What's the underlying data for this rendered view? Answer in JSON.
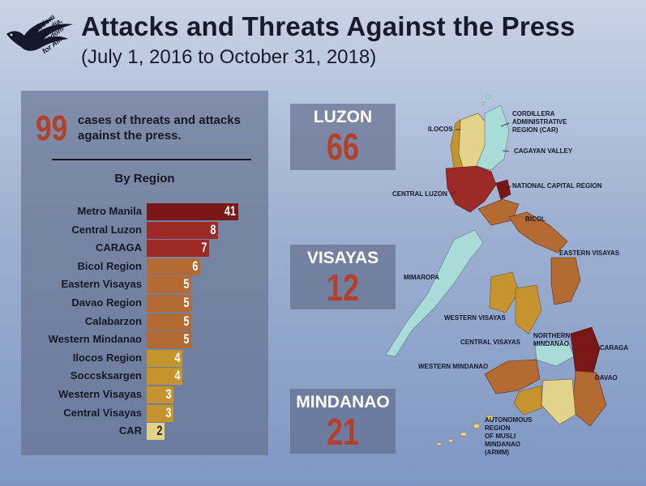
{
  "header": {
    "title": "Attacks and Threats Against the Press",
    "subtitle": "(July 1, 2016 to October 31, 2018)"
  },
  "logo": {
    "lines": [
      "Freedom",
      "for Media,",
      "Freedom",
      "for All!"
    ]
  },
  "summary": {
    "total": "99",
    "text": "cases of threats and attacks against the press.",
    "by_region_label": "By Region"
  },
  "chart_data": {
    "type": "bar",
    "title": "By Region",
    "orientation": "horizontal",
    "categories": [
      "Metro Manila",
      "Central Luzon",
      "CARAGA",
      "Bicol Region",
      "Eastern Visayas",
      "Davao Region",
      "Calabarzon",
      "Western Mindanao",
      "Ilocos Region",
      "Soccsksargen",
      "Western Visayas",
      "Central Visayas",
      "CAR"
    ],
    "values": [
      41,
      8,
      7,
      6,
      5,
      5,
      5,
      5,
      4,
      4,
      3,
      3,
      2
    ],
    "colors": [
      "#7a1718",
      "#9e2a28",
      "#9e2a28",
      "#b36a33",
      "#b36a33",
      "#b36a33",
      "#b36a33",
      "#b36a33",
      "#c5942f",
      "#c5942f",
      "#c5942f",
      "#c5942f",
      "#e3d28a"
    ]
  },
  "island_groups": [
    {
      "name": "LUZON",
      "value": "66"
    },
    {
      "name": "VISAYAS",
      "value": "12"
    },
    {
      "name": "MINDANAO",
      "value": "21"
    }
  ],
  "map_labels": {
    "ilocos": "ILOCOS",
    "car": "CORDILLERA\nADMINISTRATIVE\nREGION (CAR)",
    "cagayan": "CAGAYAN VALLEY",
    "ncr": "NATIONAL CAPITAL REGION",
    "central_luzon": "CENTRAL LUZON",
    "bicol": "BICOL",
    "eastern_visayas": "EASTERN VISAYAS",
    "mimaropa": "MIMAROPA",
    "western_visayas": "WESTERN VISAYAS",
    "central_visayas": "CENTRAL VISAYAS",
    "northern_mindanao": "NORTHERN\nMINDANAO",
    "caraga": "CARAGA",
    "western_mindanao": "WESTERN MINDANAO",
    "davao": "DAVAO",
    "armm": "AUTONOMOUS\nREGION\nOF MUSLI\nMINDANAO\n(ARMM)"
  },
  "colors": {
    "accent_red": "#b2402a",
    "panel": "#606a88"
  }
}
